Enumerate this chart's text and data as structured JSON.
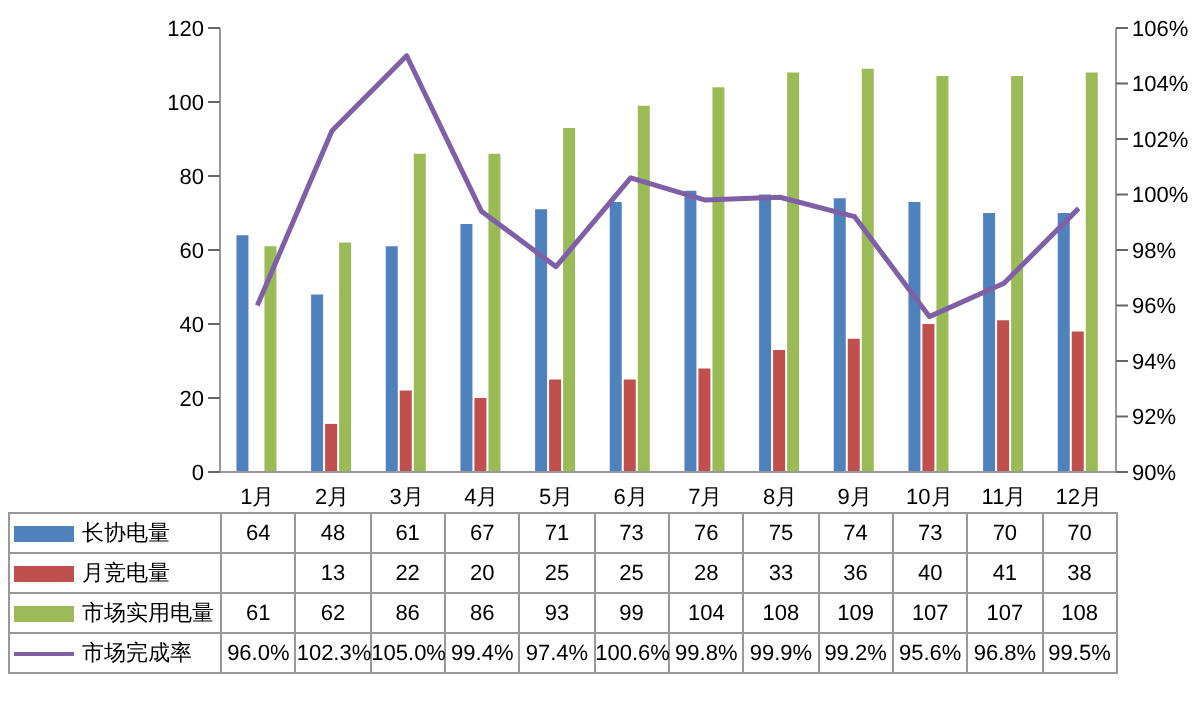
{
  "chart_data": {
    "type": "bar",
    "categories": [
      "1月",
      "2月",
      "3月",
      "4月",
      "5月",
      "6月",
      "7月",
      "8月",
      "9月",
      "10月",
      "11月",
      "12月"
    ],
    "series": [
      {
        "name": "长协电量",
        "color": "#4f81bd",
        "values": [
          64,
          48,
          61,
          67,
          71,
          73,
          76,
          75,
          74,
          73,
          70,
          70
        ],
        "value_labels": [
          "64",
          "48",
          "61",
          "67",
          "71",
          "73",
          "76",
          "75",
          "74",
          "73",
          "70",
          "70"
        ]
      },
      {
        "name": "月竞电量",
        "color": "#c0504d",
        "values": [
          null,
          13,
          22,
          20,
          25,
          25,
          28,
          33,
          36,
          40,
          41,
          38
        ],
        "value_labels": [
          null,
          "13",
          "22",
          "20",
          "25",
          "25",
          "28",
          "33",
          "36",
          "40",
          "41",
          "38"
        ]
      },
      {
        "name": "市场实用电量",
        "color": "#9bbb59",
        "values": [
          61,
          62,
          86,
          86,
          93,
          99,
          104,
          108,
          109,
          107,
          107,
          108
        ],
        "value_labels": [
          "61",
          "62",
          "86",
          "86",
          "93",
          "99",
          "104",
          "108",
          "109",
          "107",
          "107",
          "108"
        ]
      },
      {
        "name": "市场完成率",
        "type": "line",
        "axis": "y2",
        "color": "#7f5fa6",
        "values": [
          96.0,
          102.3,
          105.0,
          99.4,
          97.4,
          100.6,
          99.8,
          99.9,
          99.2,
          95.6,
          96.8,
          99.5
        ],
        "value_labels": [
          "96.0%",
          "102.3%",
          "105.0%",
          "99.4%",
          "97.4%",
          "100.6%",
          "99.8%",
          "99.9%",
          "99.2%",
          "95.6%",
          "96.8%",
          "99.5%"
        ]
      }
    ],
    "ylim": [
      0,
      120
    ],
    "yticks": [
      0,
      20,
      40,
      60,
      80,
      100,
      120
    ],
    "y2lim": [
      90,
      106
    ],
    "y2ticks": [
      {
        "value": 90,
        "label": "90%"
      },
      {
        "value": 92,
        "label": "92%"
      },
      {
        "value": 94,
        "label": "94%"
      },
      {
        "value": 96,
        "label": "96%"
      },
      {
        "value": 98,
        "label": "98%"
      },
      {
        "value": 100,
        "label": "100%"
      },
      {
        "value": 102,
        "label": "102%"
      },
      {
        "value": 104,
        "label": "104%"
      },
      {
        "value": 106,
        "label": "106%"
      }
    ],
    "legend": "bottom",
    "marker": "none",
    "line_style": "solid"
  }
}
